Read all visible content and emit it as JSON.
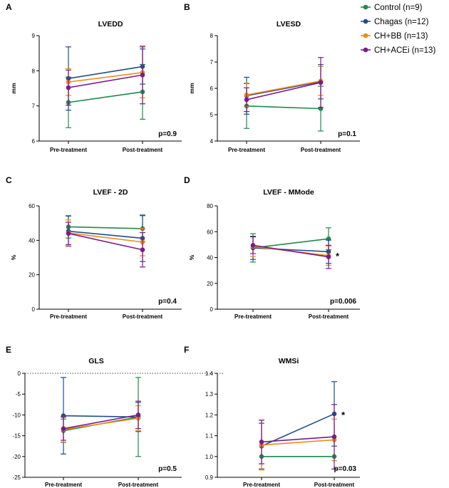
{
  "legend": [
    {
      "name": "Control (n=9)",
      "color": "#1f8a4c"
    },
    {
      "name": "Chagas (n=12)",
      "color": "#1f4e8c"
    },
    {
      "name": "CH+BB (n=13)",
      "color": "#f08a1a"
    },
    {
      "name": "CH+ACEi (n=13)",
      "color": "#7d1a86"
    }
  ],
  "chart_data": [
    {
      "letter": "A",
      "type": "line",
      "title": "LVEDD",
      "ylabel": "mm",
      "categories": [
        "Pre-treatment",
        "Post-treatment"
      ],
      "ylim": [
        6,
        9
      ],
      "yticks": [
        6,
        7,
        8,
        9
      ],
      "pvalue": "p=0.9",
      "series": [
        {
          "name": "Control (n=9)",
          "values": [
            7.1,
            7.4
          ],
          "err": [
            0.72,
            0.78
          ]
        },
        {
          "name": "Chagas (n=12)",
          "values": [
            7.78,
            8.12
          ],
          "err": [
            0.9,
            0.5
          ]
        },
        {
          "name": "CH+BB (n=13)",
          "values": [
            7.68,
            7.95
          ],
          "err": [
            0.38,
            0.72
          ]
        },
        {
          "name": "CH+ACEi (n=13)",
          "values": [
            7.52,
            7.88
          ],
          "err": [
            0.5,
            0.82
          ]
        }
      ]
    },
    {
      "letter": "B",
      "type": "line",
      "title": "LVESD",
      "ylabel": "mm",
      "categories": [
        "Pre-treatment",
        "Post-treatment"
      ],
      "ylim": [
        4,
        8
      ],
      "yticks": [
        4,
        5,
        6,
        7,
        8
      ],
      "pvalue": "p=0.1",
      "series": [
        {
          "name": "Control (n=9)",
          "values": [
            5.33,
            5.23
          ],
          "err": [
            0.85,
            0.85
          ]
        },
        {
          "name": "Chagas (n=12)",
          "values": [
            5.72,
            6.25
          ],
          "err": [
            0.7,
            0.65
          ]
        },
        {
          "name": "CH+BB (n=13)",
          "values": [
            5.75,
            6.28
          ],
          "err": [
            0.45,
            0.55
          ]
        },
        {
          "name": "CH+ACEi (n=13)",
          "values": [
            5.57,
            6.22
          ],
          "err": [
            0.45,
            0.95
          ]
        }
      ]
    },
    {
      "letter": "C",
      "type": "line",
      "title": "LVEF  - 2D",
      "ylabel": "%",
      "categories": [
        "Pre-treatment",
        "Post-treatment"
      ],
      "ylim": [
        0,
        60
      ],
      "yticks": [
        0,
        20,
        40,
        60
      ],
      "pvalue": "p=0.4",
      "series": [
        {
          "name": "Control (n=9)",
          "values": [
            47.8,
            46.8
          ],
          "err": [
            6.5,
            7.5
          ]
        },
        {
          "name": "Chagas (n=12)",
          "values": [
            45.3,
            41.2
          ],
          "err": [
            8.8,
            13.5
          ]
        },
        {
          "name": "CH+BB (n=13)",
          "values": [
            44.3,
            39.0
          ],
          "err": [
            7.5,
            8.0
          ]
        },
        {
          "name": "CH+ACEi (n=13)",
          "values": [
            44.0,
            34.5
          ],
          "err": [
            6.5,
            10.0
          ]
        }
      ]
    },
    {
      "letter": "D",
      "type": "line",
      "title": "LVEF - MMode",
      "ylabel": "%",
      "categories": [
        "Pre-treatment",
        "Post-treatment"
      ],
      "ylim": [
        0,
        80
      ],
      "yticks": [
        0,
        20,
        40,
        60,
        80
      ],
      "pvalue": "p=0.006",
      "star": "*",
      "series": [
        {
          "name": "Control (n=9)",
          "values": [
            47.5,
            54.5
          ],
          "err": [
            11.0,
            8.5
          ]
        },
        {
          "name": "Chagas (n=12)",
          "values": [
            47.5,
            44.5
          ],
          "err": [
            9.0,
            9.0
          ]
        },
        {
          "name": "CH+BB (n=13)",
          "values": [
            48.5,
            41.5
          ],
          "err": [
            7.5,
            7.5
          ]
        },
        {
          "name": "CH+ACEi (n=13)",
          "values": [
            49.5,
            40.5
          ],
          "err": [
            6.5,
            9.0
          ]
        }
      ]
    },
    {
      "letter": "E",
      "type": "line",
      "title": "GLS",
      "ylabel": "",
      "categories": [
        "Pre-treatment",
        "Post-treatment"
      ],
      "ylim": [
        -25,
        0
      ],
      "yticks": [
        -25,
        -20,
        -15,
        -10,
        -5,
        0
      ],
      "pvalue": "p=0.5",
      "series": [
        {
          "name": "Control (n=9)",
          "values": [
            -13.8,
            -10.5
          ],
          "err": [
            2.8,
            9.5
          ]
        },
        {
          "name": "Chagas (n=12)",
          "values": [
            -10.2,
            -10.5
          ],
          "err": [
            9.2,
            3.5
          ]
        },
        {
          "name": "CH+BB (n=13)",
          "values": [
            -13.5,
            -10.8
          ],
          "err": [
            3.0,
            3.0
          ]
        },
        {
          "name": "CH+ACEi (n=13)",
          "values": [
            -13.3,
            -10.0
          ],
          "err": [
            2.8,
            3.3
          ]
        }
      ]
    },
    {
      "letter": "F",
      "type": "line",
      "title": "WMSi",
      "ylabel": "",
      "categories": [
        "Pre-treatment",
        "Post-treatment"
      ],
      "ylim": [
        0.9,
        1.4
      ],
      "yticks": [
        0.9,
        1.0,
        1.1,
        1.2,
        1.3,
        1.4
      ],
      "pvalue": "p=0.03",
      "star": "*",
      "series": [
        {
          "name": "Control (n=9)",
          "values": [
            1.0,
            1.0
          ],
          "err": [
            0.0,
            0.0
          ]
        },
        {
          "name": "Chagas (n=12)",
          "values": [
            1.05,
            1.205
          ],
          "err": [
            0.11,
            0.155
          ]
        },
        {
          "name": "CH+BB (n=13)",
          "values": [
            1.055,
            1.08
          ],
          "err": [
            0.12,
            0.1
          ]
        },
        {
          "name": "CH+ACEi (n=13)",
          "values": [
            1.07,
            1.095
          ],
          "err": [
            0.105,
            0.155
          ]
        }
      ]
    }
  ]
}
